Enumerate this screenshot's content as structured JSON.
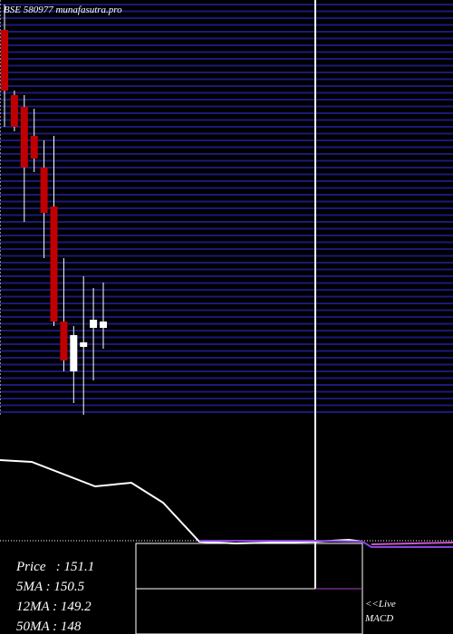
{
  "header": {
    "title": "BSE 580977 munafasutra.pro"
  },
  "chart_data": {
    "type": "candlestick",
    "ylim": [
      141,
      187
    ],
    "open": [
      183.7,
      176.5,
      175.2,
      172,
      168.5,
      164.2,
      151.5,
      146,
      148.7,
      150.8,
      150.8
    ],
    "high": [
      186.5,
      177,
      176.5,
      175,
      171.5,
      172,
      158.5,
      151,
      156.5,
      155.2,
      155.8
    ],
    "low": [
      173,
      172.5,
      162.5,
      168,
      158.5,
      151,
      146,
      142.5,
      141.2,
      145,
      148.5
    ],
    "close": [
      177,
      173,
      168.5,
      169.5,
      163.5,
      151.5,
      147.2,
      150,
      149.2,
      151.7,
      151.5
    ],
    "up_color": "#ffffff",
    "down_color": "#c00000"
  },
  "stats": [
    "Price   : 151.1",
    "5MA : 150.5",
    "12MA : 149.2",
    "50MA : 148"
  ],
  "link": [
    "<<Live",
    "MACD"
  ]
}
